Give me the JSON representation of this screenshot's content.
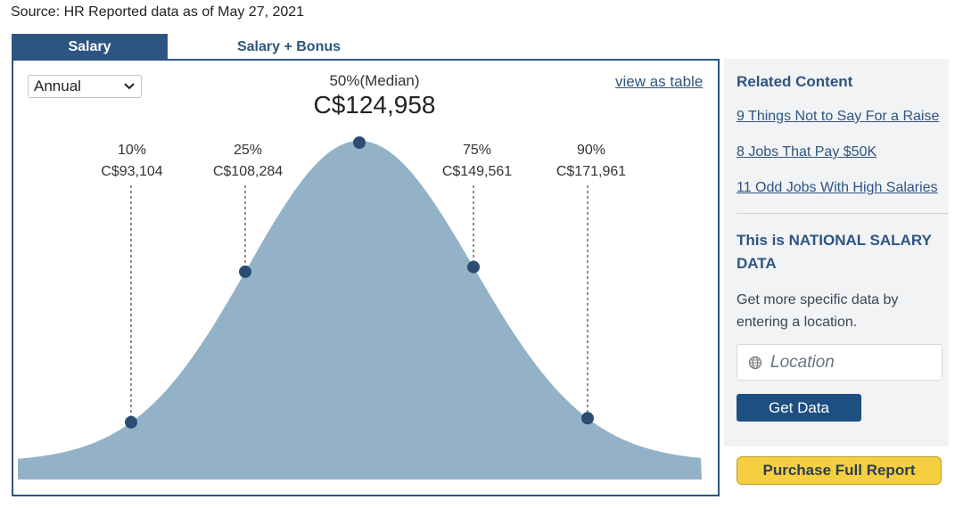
{
  "source_text": "Source: HR Reported data as of May 27, 2021",
  "tabs": [
    {
      "label": "Salary",
      "active": true
    },
    {
      "label": "Salary + Bonus",
      "active": false
    }
  ],
  "chart": {
    "period_select": {
      "value": "Annual",
      "options": [
        "Annual"
      ]
    },
    "view_as_table": "view as table",
    "median": {
      "label": "50%(Median)",
      "value": "C$124,958"
    }
  },
  "chart_data": {
    "type": "area",
    "title": "",
    "xlabel": "",
    "ylabel": "",
    "x_unit": "C$",
    "percentiles": [
      {
        "label": "10%",
        "value_text": "C$93,104",
        "value": 93104
      },
      {
        "label": "25%",
        "value_text": "C$108,284",
        "value": 108284
      },
      {
        "label": "50%(Median)",
        "value_text": "C$124,958",
        "value": 124958
      },
      {
        "label": "75%",
        "value_text": "C$149,561",
        "value": 149561
      },
      {
        "label": "90%",
        "value_text": "C$171,961",
        "value": 171961
      }
    ],
    "colors": {
      "fill": "#93b2c8",
      "point": "#2b4d73"
    }
  },
  "sidebar": {
    "related_title": "Related Content",
    "links": [
      "9 Things Not to Say For a Raise",
      "8 Jobs That Pay $50K",
      "11 Odd Jobs With High Salaries"
    ],
    "national_title": "This is NATIONAL SALARY DATA",
    "national_desc": "Get more specific data by entering a location.",
    "location_placeholder": "Location",
    "get_data_label": "Get Data",
    "purchase_label": "Purchase Full Report"
  },
  "colors": {
    "brand_blue": "#2e5582",
    "button_blue": "#1d4f82",
    "purchase_yellow": "#f5cf3f"
  }
}
